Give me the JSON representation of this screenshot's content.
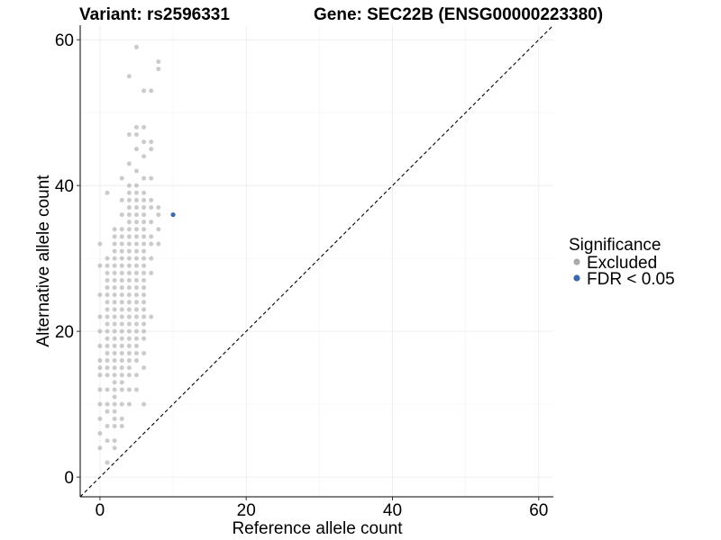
{
  "chart_data": {
    "type": "scatter",
    "title_left": "Variant: rs2596331",
    "title_right": "Gene: SEC22B (ENSG00000223380)",
    "xlabel": "Reference allele count",
    "ylabel": "Alternative allele count",
    "xlim": [
      -2.7,
      62
    ],
    "ylim": [
      -2.7,
      62
    ],
    "xticks": [
      0,
      20,
      40,
      60
    ],
    "yticks": [
      0,
      20,
      40,
      60
    ],
    "grid": true,
    "reference_line": "y = x (dashed)",
    "legend": {
      "title": "Significance",
      "placement": "right",
      "entries": [
        {
          "label": "Excluded",
          "color": "#a9a9a9"
        },
        {
          "label": "FDR < 0.05",
          "color": "#3a6aaa"
        }
      ]
    },
    "series": [
      {
        "name": "Excluded",
        "color": "#a9a9a9",
        "points": [
          [
            0,
            4
          ],
          [
            0,
            6
          ],
          [
            0,
            8
          ],
          [
            0,
            10
          ],
          [
            0,
            12
          ],
          [
            0,
            14
          ],
          [
            0,
            15
          ],
          [
            0,
            16
          ],
          [
            0,
            18
          ],
          [
            0,
            20
          ],
          [
            0,
            22
          ],
          [
            0,
            25
          ],
          [
            0,
            29
          ],
          [
            0,
            32
          ],
          [
            1,
            2
          ],
          [
            1,
            5
          ],
          [
            1,
            7
          ],
          [
            1,
            9
          ],
          [
            1,
            10
          ],
          [
            1,
            12
          ],
          [
            1,
            14
          ],
          [
            1,
            15
          ],
          [
            1,
            16
          ],
          [
            1,
            17
          ],
          [
            1,
            18
          ],
          [
            1,
            19
          ],
          [
            1,
            20
          ],
          [
            1,
            21
          ],
          [
            1,
            22
          ],
          [
            1,
            23
          ],
          [
            1,
            24
          ],
          [
            1,
            25
          ],
          [
            1,
            26
          ],
          [
            1,
            27
          ],
          [
            1,
            28
          ],
          [
            1,
            29
          ],
          [
            1,
            30
          ],
          [
            1,
            39
          ],
          [
            2,
            4
          ],
          [
            2,
            5
          ],
          [
            2,
            7
          ],
          [
            2,
            8
          ],
          [
            2,
            9
          ],
          [
            2,
            10
          ],
          [
            2,
            11
          ],
          [
            2,
            12
          ],
          [
            2,
            13
          ],
          [
            2,
            14
          ],
          [
            2,
            15
          ],
          [
            2,
            16
          ],
          [
            2,
            17
          ],
          [
            2,
            18
          ],
          [
            2,
            19
          ],
          [
            2,
            20
          ],
          [
            2,
            21
          ],
          [
            2,
            22
          ],
          [
            2,
            23
          ],
          [
            2,
            24
          ],
          [
            2,
            25
          ],
          [
            2,
            26
          ],
          [
            2,
            27
          ],
          [
            2,
            28
          ],
          [
            2,
            29
          ],
          [
            2,
            30
          ],
          [
            2,
            31
          ],
          [
            2,
            32
          ],
          [
            2,
            33
          ],
          [
            2,
            34
          ],
          [
            3,
            7
          ],
          [
            3,
            8
          ],
          [
            3,
            10
          ],
          [
            3,
            12
          ],
          [
            3,
            13
          ],
          [
            3,
            14
          ],
          [
            3,
            15
          ],
          [
            3,
            16
          ],
          [
            3,
            17
          ],
          [
            3,
            18
          ],
          [
            3,
            19
          ],
          [
            3,
            20
          ],
          [
            3,
            21
          ],
          [
            3,
            22
          ],
          [
            3,
            23
          ],
          [
            3,
            24
          ],
          [
            3,
            25
          ],
          [
            3,
            26
          ],
          [
            3,
            27
          ],
          [
            3,
            28
          ],
          [
            3,
            29
          ],
          [
            3,
            30
          ],
          [
            3,
            31
          ],
          [
            3,
            32
          ],
          [
            3,
            33
          ],
          [
            3,
            34
          ],
          [
            3,
            36
          ],
          [
            3,
            38
          ],
          [
            3,
            41
          ],
          [
            4,
            10
          ],
          [
            4,
            12
          ],
          [
            4,
            14
          ],
          [
            4,
            15
          ],
          [
            4,
            16
          ],
          [
            4,
            17
          ],
          [
            4,
            18
          ],
          [
            4,
            19
          ],
          [
            4,
            20
          ],
          [
            4,
            21
          ],
          [
            4,
            22
          ],
          [
            4,
            23
          ],
          [
            4,
            24
          ],
          [
            4,
            25
          ],
          [
            4,
            26
          ],
          [
            4,
            27
          ],
          [
            4,
            28
          ],
          [
            4,
            29
          ],
          [
            4,
            30
          ],
          [
            4,
            31
          ],
          [
            4,
            32
          ],
          [
            4,
            33
          ],
          [
            4,
            34
          ],
          [
            4,
            35
          ],
          [
            4,
            36
          ],
          [
            4,
            37
          ],
          [
            4,
            38
          ],
          [
            4,
            39
          ],
          [
            4,
            40
          ],
          [
            4,
            43
          ],
          [
            4,
            47
          ],
          [
            4,
            55
          ],
          [
            5,
            12
          ],
          [
            5,
            14
          ],
          [
            5,
            16
          ],
          [
            5,
            17
          ],
          [
            5,
            18
          ],
          [
            5,
            19
          ],
          [
            5,
            20
          ],
          [
            5,
            21
          ],
          [
            5,
            22
          ],
          [
            5,
            23
          ],
          [
            5,
            24
          ],
          [
            5,
            25
          ],
          [
            5,
            26
          ],
          [
            5,
            27
          ],
          [
            5,
            28
          ],
          [
            5,
            29
          ],
          [
            5,
            30
          ],
          [
            5,
            31
          ],
          [
            5,
            32
          ],
          [
            5,
            33
          ],
          [
            5,
            34
          ],
          [
            5,
            35
          ],
          [
            5,
            36
          ],
          [
            5,
            37
          ],
          [
            5,
            38
          ],
          [
            5,
            39
          ],
          [
            5,
            40
          ],
          [
            5,
            42
          ],
          [
            5,
            45
          ],
          [
            5,
            47
          ],
          [
            5,
            48
          ],
          [
            5,
            59
          ],
          [
            6,
            10
          ],
          [
            6,
            15
          ],
          [
            6,
            17
          ],
          [
            6,
            19
          ],
          [
            6,
            20
          ],
          [
            6,
            21
          ],
          [
            6,
            22
          ],
          [
            6,
            23
          ],
          [
            6,
            24
          ],
          [
            6,
            25
          ],
          [
            6,
            26
          ],
          [
            6,
            27
          ],
          [
            6,
            28
          ],
          [
            6,
            29
          ],
          [
            6,
            30
          ],
          [
            6,
            31
          ],
          [
            6,
            32
          ],
          [
            6,
            33
          ],
          [
            6,
            34
          ],
          [
            6,
            35
          ],
          [
            6,
            36
          ],
          [
            6,
            37
          ],
          [
            6,
            38
          ],
          [
            6,
            39
          ],
          [
            6,
            41
          ],
          [
            6,
            44
          ],
          [
            6,
            46
          ],
          [
            6,
            48
          ],
          [
            6,
            53
          ],
          [
            7,
            22
          ],
          [
            7,
            28
          ],
          [
            7,
            30
          ],
          [
            7,
            32
          ],
          [
            7,
            33
          ],
          [
            7,
            35
          ],
          [
            7,
            37
          ],
          [
            7,
            38
          ],
          [
            7,
            41
          ],
          [
            7,
            45
          ],
          [
            7,
            46
          ],
          [
            7,
            53
          ],
          [
            8,
            32
          ],
          [
            8,
            34
          ],
          [
            8,
            36
          ],
          [
            8,
            37
          ],
          [
            8,
            56
          ],
          [
            8,
            57
          ]
        ]
      },
      {
        "name": "FDR < 0.05",
        "color": "#3a6aaa",
        "points": [
          [
            10,
            36
          ]
        ]
      }
    ]
  }
}
